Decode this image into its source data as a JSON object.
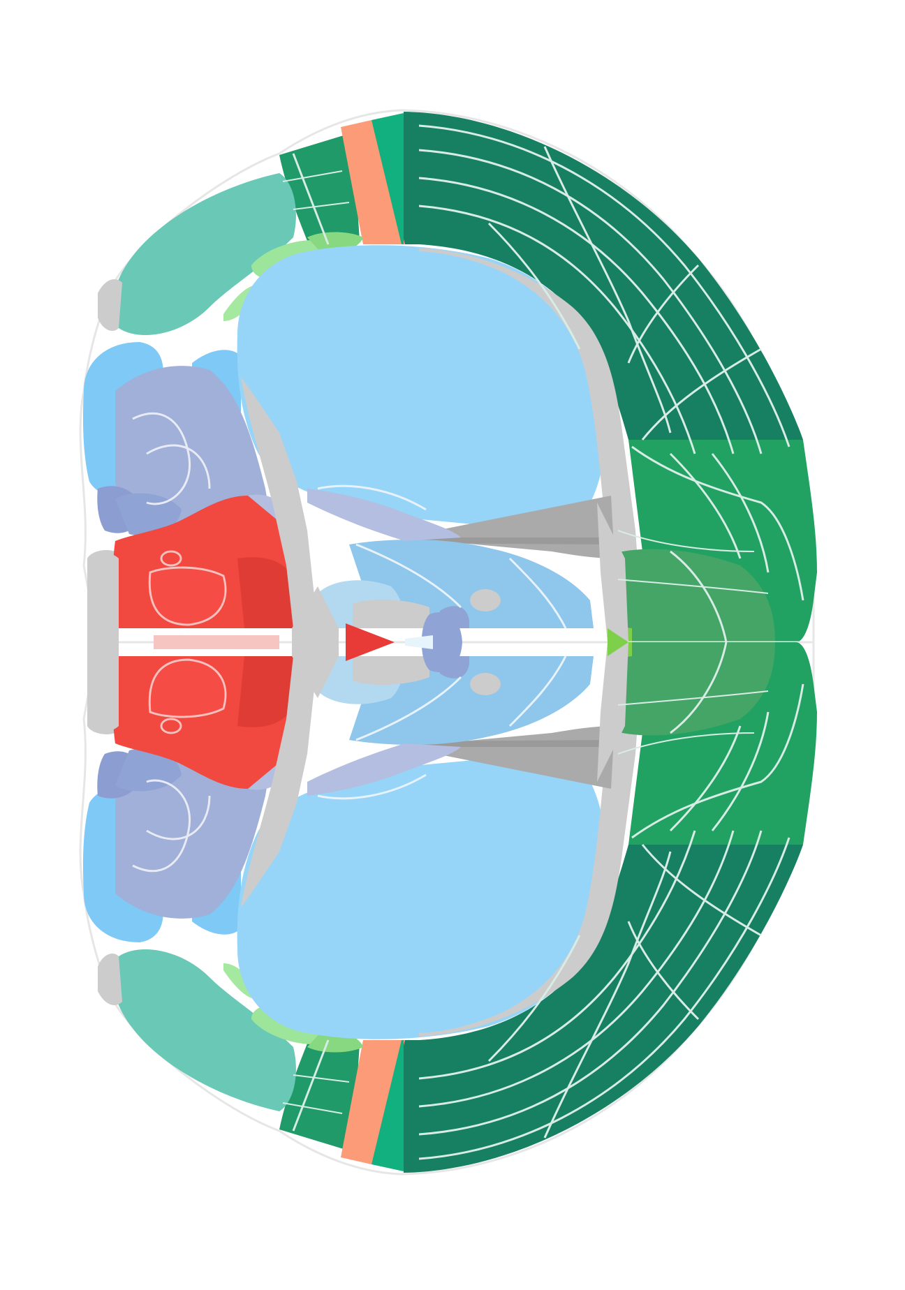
{
  "figure": {
    "title": "",
    "colors": {
      "background": "#ffffff",
      "outline": "#e8e8e8",
      "boundary": "#e9eef2",
      "cortex_dark": "#178062",
      "cortex_mid": "#1f9a5a",
      "cortex_bright": "#21a262",
      "retrosplenial": "#44a566",
      "retro_core": "#7ed04b",
      "piriform": "#69c9b6",
      "olfactory_small": "#9de59a",
      "olfactory_small2": "#88d882",
      "strip_orange": "#fc9b78",
      "strip_teal": "#12af7f",
      "striatum": "#96d5f8",
      "striatum_light": "#e8f4fb",
      "thalamus_blue": "#8ec6ec",
      "thalamus_light": "#b3d9f1",
      "pallidum": "#7fc9f6",
      "amygdala_lavender": "#a0b0d8",
      "amygdala_lavender_light": "#b3bee0",
      "amygdala_dark": "#8c9ed1",
      "hypothalamus_red": "#f14840",
      "hypothalamus_red2": "#e8413a",
      "fiber_gray": "#cccccc",
      "ventricle_gray": "#aaaaaa",
      "small_red": "#e83a36",
      "small_purple": "#8fa3d4"
    }
  }
}
